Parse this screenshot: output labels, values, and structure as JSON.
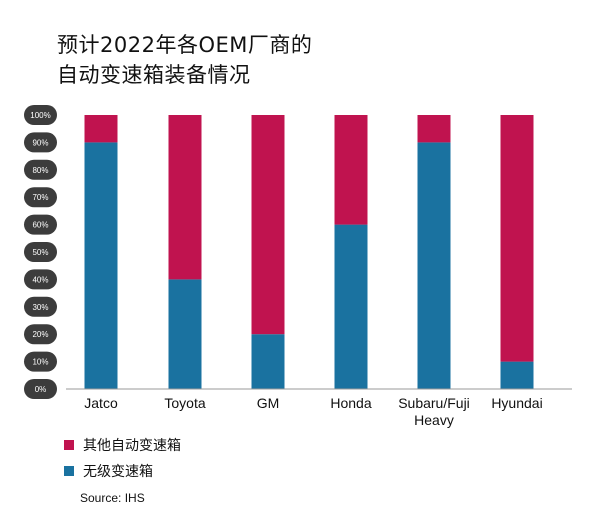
{
  "title_lines": [
    "预计2022年各OEM厂商的",
    "自动变速箱装备情况"
  ],
  "chart_data": {
    "type": "bar",
    "stacked": true,
    "percent": true,
    "categories": [
      "Jatco",
      "Toyota",
      "GM",
      "Honda",
      "Subaru/Fuji Heavy",
      "Hyundai"
    ],
    "category_lines": [
      [
        "Jatco"
      ],
      [
        "Toyota"
      ],
      [
        "GM"
      ],
      [
        "Honda"
      ],
      [
        "Subaru/Fuji",
        "Heavy"
      ],
      [
        "Hyundai"
      ]
    ],
    "series": [
      {
        "name": "无级变速箱",
        "color": "#1a72a0",
        "values": [
          90,
          40,
          20,
          60,
          90,
          10
        ]
      },
      {
        "name": "其他自动变速箱",
        "color": "#c0134f",
        "values": [
          10,
          60,
          80,
          40,
          10,
          90
        ]
      }
    ],
    "ylim": [
      0,
      100
    ],
    "yticks": [
      "0%",
      "10%",
      "20%",
      "30%",
      "40%",
      "50%",
      "60%",
      "70%",
      "80%",
      "90%",
      "100%"
    ],
    "legend": [
      {
        "label": "其他自动变速箱",
        "color": "#c0134f"
      },
      {
        "label": "无级变速箱",
        "color": "#1a72a0"
      }
    ],
    "legend_position": "bottom-left",
    "grid": false
  },
  "source": "Source: IHS"
}
